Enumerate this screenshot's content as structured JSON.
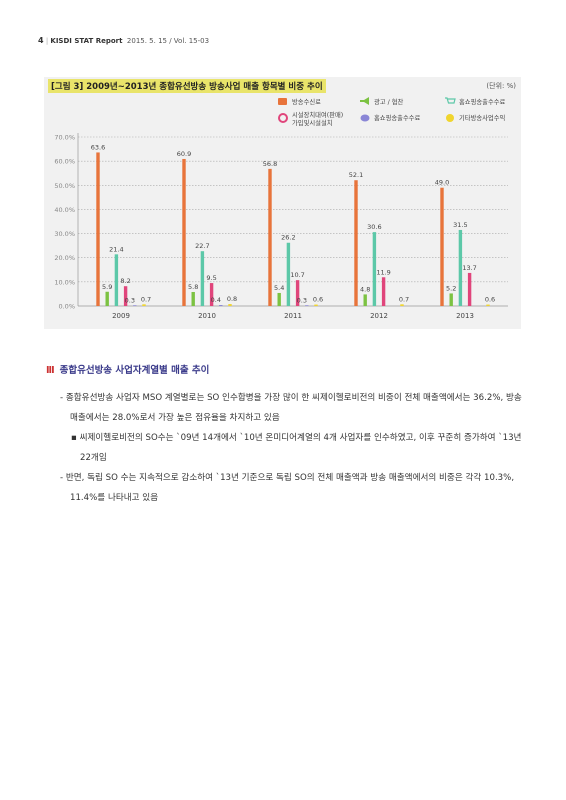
{
  "header": {
    "page_number": "4",
    "report": "KISDI STAT Report",
    "issue": "2015. 5. 15 / Vol. 15-03"
  },
  "figure": {
    "title": "[그림 3]  2009년~2013년 종합유선방송 방송사업 매출 항목별 비중 추이",
    "unit": "(단위: %)"
  },
  "chart_data": {
    "type": "bar",
    "categories": [
      "2009",
      "2010",
      "2011",
      "2012",
      "2013"
    ],
    "series": [
      {
        "name": "방송수신료",
        "color": "#e8743b",
        "values": [
          63.6,
          60.9,
          56.8,
          52.1,
          49.0
        ],
        "labels": [
          "63.6",
          "60.9",
          "56.8",
          "52.1",
          "49.0"
        ]
      },
      {
        "name": "광고 / 협찬",
        "color": "#7cc242",
        "values": [
          5.9,
          5.8,
          5.4,
          4.8,
          5.2
        ],
        "labels": [
          "5.9",
          "5.8",
          "5.4",
          "4.8",
          "5.2"
        ]
      },
      {
        "name": "홈쇼핑송출수수료",
        "color": "#5cc8a8",
        "values": [
          21.4,
          22.7,
          26.2,
          30.6,
          31.5
        ],
        "labels": [
          "21.4",
          "22.7",
          "26.2",
          "30.6",
          "31.5"
        ]
      },
      {
        "name": "시설장치대여(판매) 가입및시설설치",
        "color": "#e0457b",
        "values": [
          8.2,
          9.5,
          10.7,
          11.9,
          13.7
        ],
        "labels": [
          "8.2",
          "9.5",
          "10.7",
          "11.9",
          "13.7"
        ]
      },
      {
        "name": "홈쇼핑송출수수료",
        "color": "#8a86d6",
        "values": [
          0.3,
          0.4,
          0.3,
          0.0,
          0.0
        ],
        "labels": [
          "0.3",
          "0.4",
          "0.3",
          "",
          ""
        ]
      },
      {
        "name": "기타방송사업수익",
        "color": "#f0d52e",
        "values": [
          0.7,
          0.8,
          0.6,
          0.7,
          0.6
        ],
        "labels": [
          "0.7",
          "0.8",
          "0.6",
          "0.7",
          "0.6"
        ]
      }
    ],
    "legend_labels": [
      "방송수신료",
      "광고 / 협찬",
      "홈쇼핑송출수수료",
      "시설장치대여(판매) 가입및시설설치",
      "홈쇼핑송출수수료",
      "기타방송사업수익"
    ],
    "legend_icons": [
      "tv-icon",
      "megaphone-icon",
      "cart-icon",
      "gear-icon",
      "coins-icon",
      "coin-icon"
    ],
    "yticks": [
      "0.0%",
      "10.0%",
      "20.0%",
      "30.0%",
      "40.0%",
      "50.0%",
      "60.0%",
      "70.0%"
    ],
    "ylim": [
      0,
      70
    ],
    "grid": true,
    "legend_position": "top-right"
  },
  "section": {
    "mark": "III",
    "title": "종합유선방송 사업자계열별 매출 추이"
  },
  "paragraphs": [
    {
      "bullet": "-",
      "text": "종합유선방송 사업자 MSO 계열별로는 SO 인수합병을 가장 많이 한 씨제이헬로비전의 비중이 전체 매출액에서는 36.2%, 방송 매출에서는 28.0%로서 가장 높은 점유율을 차지하고 있음"
    },
    {
      "bullet": "▪",
      "text": "씨제이헬로비전의 SO수는 `09년 14개에서 `10년 온미디어계열의 4개 사업자를 인수하였고, 이후 꾸준히 증가하여 `13년 22개임"
    },
    {
      "bullet": "-",
      "text": "반면, 독립 SO 수는 지속적으로 감소하여 `13년 기준으로 독립 SO의 전체 매출액과 방송 매출액에서의 비중은 각각 10.3%, 11.4%를 나타내고 있음"
    }
  ]
}
